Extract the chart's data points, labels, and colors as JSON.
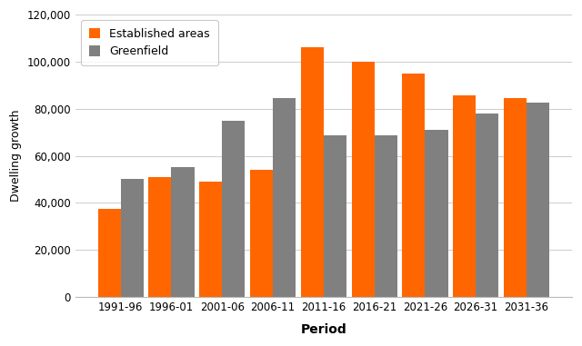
{
  "periods": [
    "1991-96",
    "1996-01",
    "2001-06",
    "2006-11",
    "2011-16",
    "2016-21",
    "2021-26",
    "2026-31",
    "2031-36"
  ],
  "established_areas": [
    37500,
    51000,
    49000,
    54000,
    106000,
    100000,
    95000,
    85500,
    84500
  ],
  "greenfield": [
    50000,
    55000,
    75000,
    84500,
    68500,
    68500,
    71000,
    78000,
    82500
  ],
  "established_color": "#FF6600",
  "greenfield_color": "#808080",
  "xlabel": "Period",
  "ylabel": "Dwelling growth",
  "ylim": [
    0,
    120000
  ],
  "yticks": [
    0,
    20000,
    40000,
    60000,
    80000,
    100000,
    120000
  ],
  "legend_labels": [
    "Established areas",
    "Greenfield"
  ],
  "background_color": "#ffffff",
  "grid_color": "#d0d0d0"
}
